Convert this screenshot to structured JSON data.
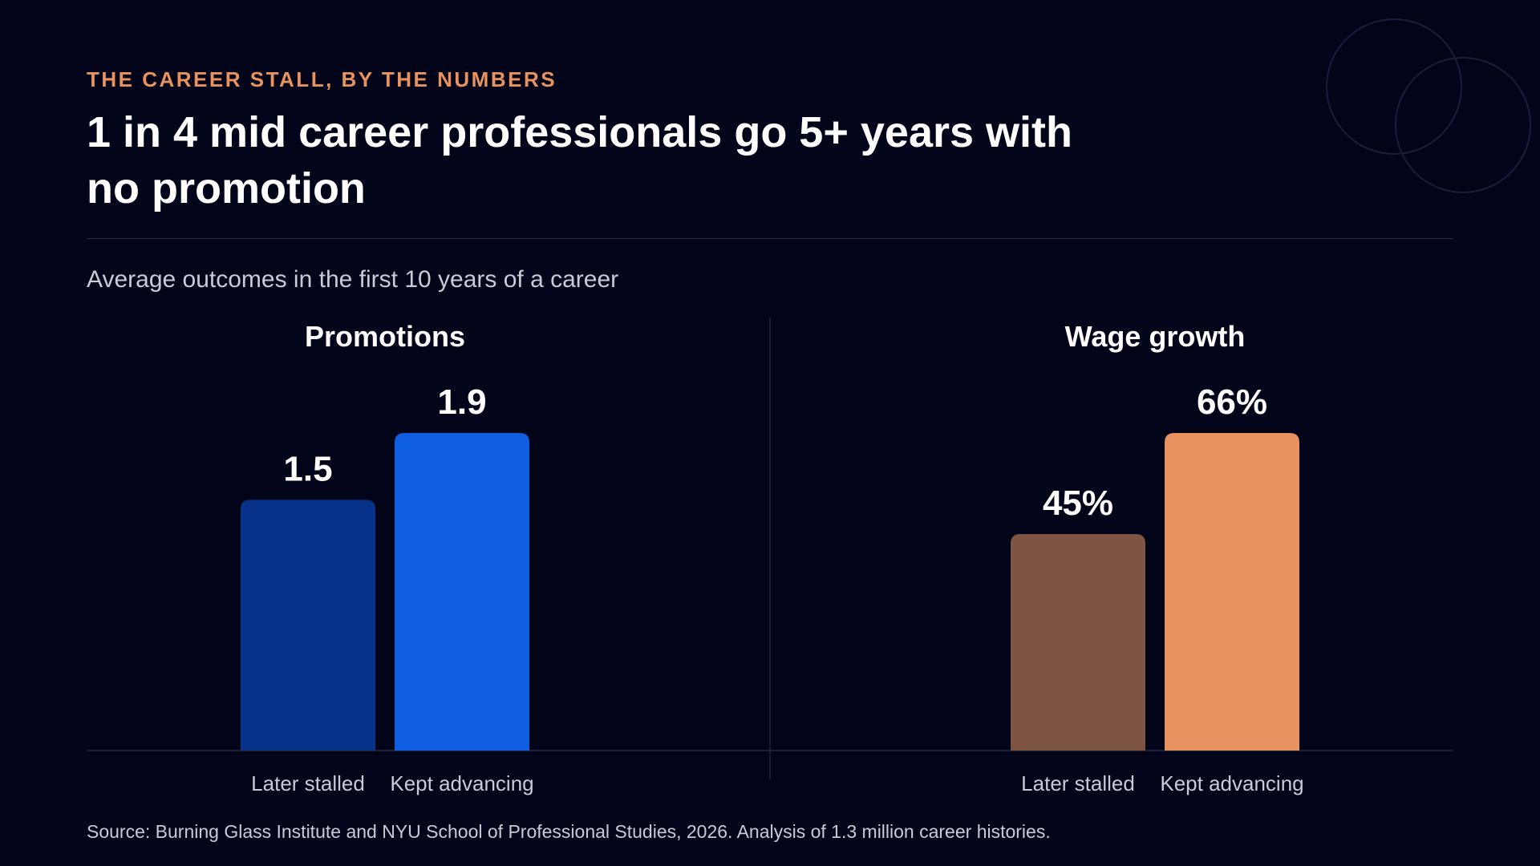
{
  "header": {
    "eyebrow": "THE CAREER STALL, BY THE NUMBERS",
    "title": "1 in 4 mid career professionals go 5+ years with no promotion",
    "subtitle": "Average outcomes in the first 10 years of a career"
  },
  "footer": {
    "source": "Source: Burning Glass Institute and NYU School of Professional Studies, 2026. Analysis of 1.3 million career histories."
  },
  "colors": {
    "background": "#02041a",
    "accent": "#e8935f"
  },
  "chart_data": [
    {
      "type": "bar",
      "title": "Promotions",
      "categories": [
        "Later stalled",
        "Kept advancing"
      ],
      "values": [
        1.5,
        1.9
      ],
      "value_labels": [
        "1.5",
        "1.9"
      ],
      "colors": [
        "#07348a",
        "#0f5de0"
      ],
      "ylim": [
        0,
        1.9
      ],
      "grid": false,
      "legend": "none"
    },
    {
      "type": "bar",
      "title": "Wage growth",
      "categories": [
        "Later stalled",
        "Kept advancing"
      ],
      "values": [
        45,
        66
      ],
      "value_labels": [
        "45%",
        "66%"
      ],
      "colors": [
        "#805444",
        "#e8935f"
      ],
      "ylim": [
        0,
        66
      ],
      "grid": false,
      "legend": "none"
    }
  ]
}
